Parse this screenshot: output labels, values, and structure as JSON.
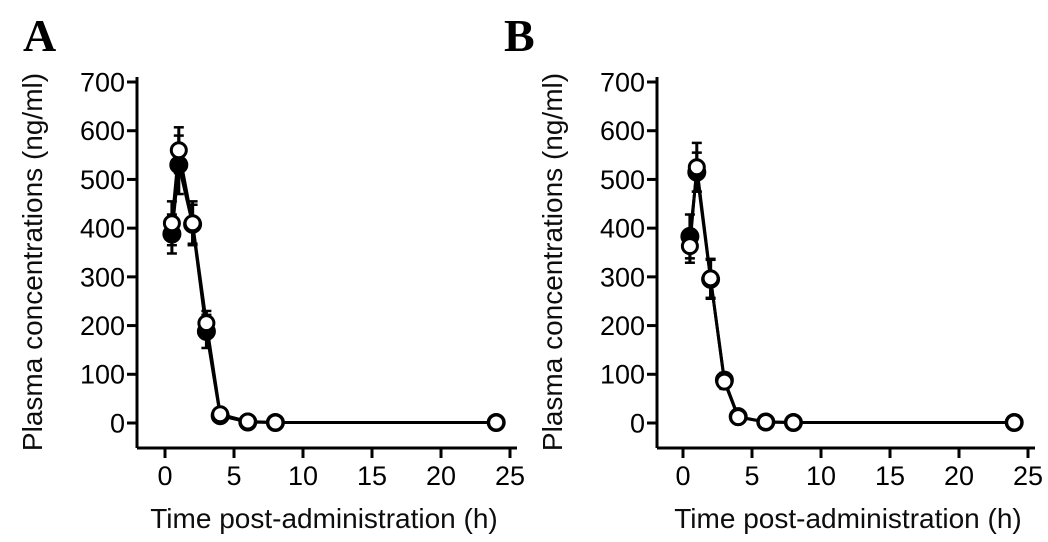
{
  "figure": {
    "background_color": "#ffffff",
    "ink_color": "#000000",
    "marker_open_fill": "#ffffff"
  },
  "chart_data": [
    {
      "type": "line",
      "panel_label": "A",
      "title": "",
      "xlabel": "Time post-administration (h)",
      "ylabel": "Plasma concentrations (ng/ml)",
      "x": [
        0.5,
        1,
        2,
        3,
        4,
        6,
        8,
        24
      ],
      "series": [
        {
          "name": "filled circles",
          "marker": "filled-circle",
          "color": "#000000",
          "values": [
            388,
            530,
            408,
            188,
            15,
            2,
            1,
            1
          ],
          "errors": [
            40,
            60,
            40,
            34,
            0,
            0,
            0,
            0
          ]
        },
        {
          "name": "open circles",
          "marker": "open-circle",
          "color": "#000000",
          "values": [
            410,
            560,
            410,
            205,
            18,
            3,
            1,
            1
          ],
          "errors": [
            45,
            47,
            45,
            25,
            0,
            0,
            0,
            0
          ]
        }
      ],
      "xlim": [
        0,
        25
      ],
      "ylim": [
        0,
        700
      ],
      "xticks": [
        0,
        5,
        10,
        15,
        20,
        25
      ],
      "yticks": [
        0,
        100,
        200,
        300,
        400,
        500,
        600,
        700
      ],
      "grid": false,
      "legend": false,
      "error_bars": true
    },
    {
      "type": "line",
      "panel_label": "B",
      "title": "",
      "xlabel": "Time post-administration (h)",
      "ylabel": "Plasma concentrations (ng/ml)",
      "x": [
        0.5,
        1,
        2,
        3,
        4,
        6,
        8,
        24
      ],
      "series": [
        {
          "name": "filled circles",
          "marker": "filled-circle",
          "color": "#000000",
          "values": [
            383,
            515,
            295,
            88,
            13,
            2,
            1,
            1
          ],
          "errors": [
            45,
            40,
            40,
            15,
            0,
            0,
            0,
            0
          ]
        },
        {
          "name": "open circles",
          "marker": "open-circle",
          "color": "#000000",
          "values": [
            363,
            525,
            297,
            85,
            12,
            2,
            1,
            1
          ],
          "errors": [
            34,
            50,
            40,
            15,
            0,
            0,
            0,
            0
          ]
        }
      ],
      "xlim": [
        0,
        25
      ],
      "ylim": [
        0,
        700
      ],
      "xticks": [
        0,
        5,
        10,
        15,
        20,
        25
      ],
      "yticks": [
        0,
        100,
        200,
        300,
        400,
        500,
        600,
        700
      ],
      "grid": false,
      "legend": false,
      "error_bars": true
    }
  ]
}
